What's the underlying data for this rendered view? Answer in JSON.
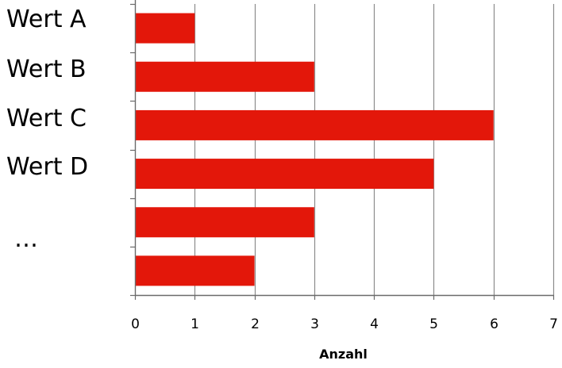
{
  "chart_data": {
    "type": "bar",
    "orientation": "horizontal",
    "categories": [
      "Wert A",
      "Wert B",
      "Wert C",
      "Wert D",
      "…",
      ""
    ],
    "values": [
      1,
      3,
      6,
      5,
      3,
      2
    ],
    "xlabel": "Anzahl",
    "ylabel": "",
    "xlim": [
      0,
      7
    ],
    "xticks": [
      "0",
      "1",
      "2",
      "3",
      "4",
      "5",
      "6",
      "7"
    ],
    "grid": "vertical",
    "bar_color": "#e3170a",
    "grid_color": "#8c8c8c",
    "axis_color": "#6b6b6b"
  }
}
